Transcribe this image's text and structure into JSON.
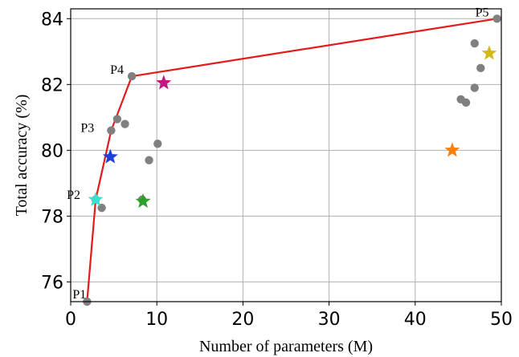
{
  "chart_data": {
    "type": "scatter",
    "title": "",
    "xlabel": "Number of parameters (M)",
    "ylabel": "Total accuracy (%)",
    "xlim": [
      0,
      50
    ],
    "ylim": [
      75.4,
      84.3
    ],
    "xticks": [
      0,
      10,
      20,
      30,
      40,
      50
    ],
    "yticks": [
      76,
      78,
      80,
      82,
      84
    ],
    "grid": true,
    "frontier": {
      "color": "#e41a1c",
      "points": [
        {
          "label": "P1",
          "x": 1.9,
          "y": 75.4
        },
        {
          "label": "P2",
          "x": 2.9,
          "y": 78.5
        },
        {
          "label": "P3",
          "x": 4.7,
          "y": 80.6
        },
        {
          "label": "P4",
          "x": 7.1,
          "y": 82.25
        },
        {
          "label": "P5",
          "x": 49.5,
          "y": 84.0
        }
      ]
    },
    "gray_points": {
      "color": "#808080",
      "points": [
        {
          "x": 5.4,
          "y": 80.95
        },
        {
          "x": 6.3,
          "y": 80.8
        },
        {
          "x": 3.6,
          "y": 78.25
        },
        {
          "x": 8.3,
          "y": 78.5
        },
        {
          "x": 9.1,
          "y": 79.7
        },
        {
          "x": 10.1,
          "y": 80.2
        },
        {
          "x": 45.3,
          "y": 81.55
        },
        {
          "x": 45.9,
          "y": 81.45
        },
        {
          "x": 46.9,
          "y": 81.9
        },
        {
          "x": 46.9,
          "y": 83.25
        },
        {
          "x": 47.6,
          "y": 82.5
        }
      ]
    },
    "stars": [
      {
        "x": 2.9,
        "y": 78.5,
        "color": "#3de0d0"
      },
      {
        "x": 4.6,
        "y": 79.8,
        "color": "#1f3fd6"
      },
      {
        "x": 8.4,
        "y": 78.45,
        "color": "#2ca02c"
      },
      {
        "x": 10.8,
        "y": 82.05,
        "color": "#c41581"
      },
      {
        "x": 44.3,
        "y": 80.0,
        "color": "#ff7f0e"
      },
      {
        "x": 48.6,
        "y": 82.95,
        "color": "#d4b81a"
      }
    ]
  }
}
